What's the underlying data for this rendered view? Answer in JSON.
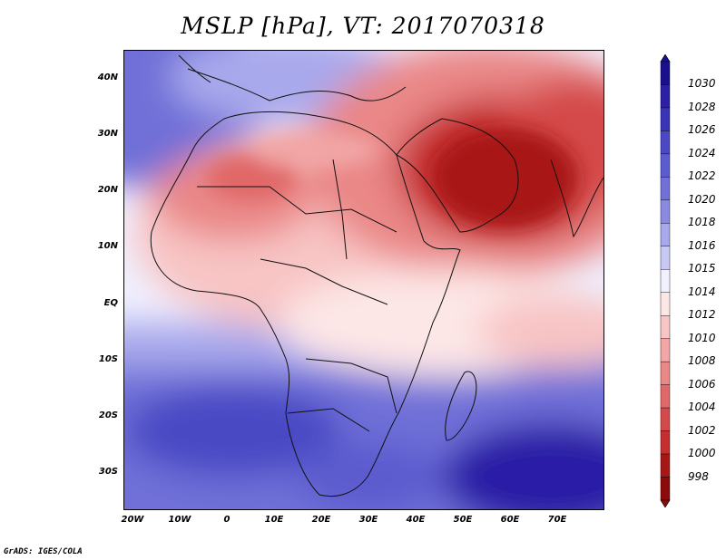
{
  "title": "MSLP [hPa], VT: 2017070318",
  "footer": "GrADS: IGES/COLA",
  "lat_labels": [
    "40N",
    "30N",
    "20N",
    "10N",
    "EQ",
    "10S",
    "20S",
    "30S"
  ],
  "lon_labels": [
    "20W",
    "10W",
    "0",
    "10E",
    "20E",
    "30E",
    "40E",
    "50E",
    "60E",
    "70E"
  ],
  "colorbar": {
    "levels": [
      "1030",
      "1028",
      "1026",
      "1024",
      "1022",
      "1020",
      "1018",
      "1016",
      "1015",
      "1014",
      "1012",
      "1010",
      "1008",
      "1006",
      "1004",
      "1002",
      "1000",
      "998"
    ],
    "colors": [
      "#1a0f8c",
      "#2a1fa6",
      "#3a35b8",
      "#4a48c4",
      "#5b5ccf",
      "#7070d8",
      "#8a8ae2",
      "#a8a8ec",
      "#c8c8f4",
      "#f0f0ff",
      "#fde6e6",
      "#f8c4c4",
      "#f2a6a6",
      "#ea8787",
      "#e06868",
      "#d44a4a",
      "#c42e2e",
      "#a81616",
      "#8c0a0a"
    ]
  },
  "colors": {
    "land_outline": "#111111",
    "hot": "#b41e1e",
    "cold": "#2a1fa6"
  }
}
